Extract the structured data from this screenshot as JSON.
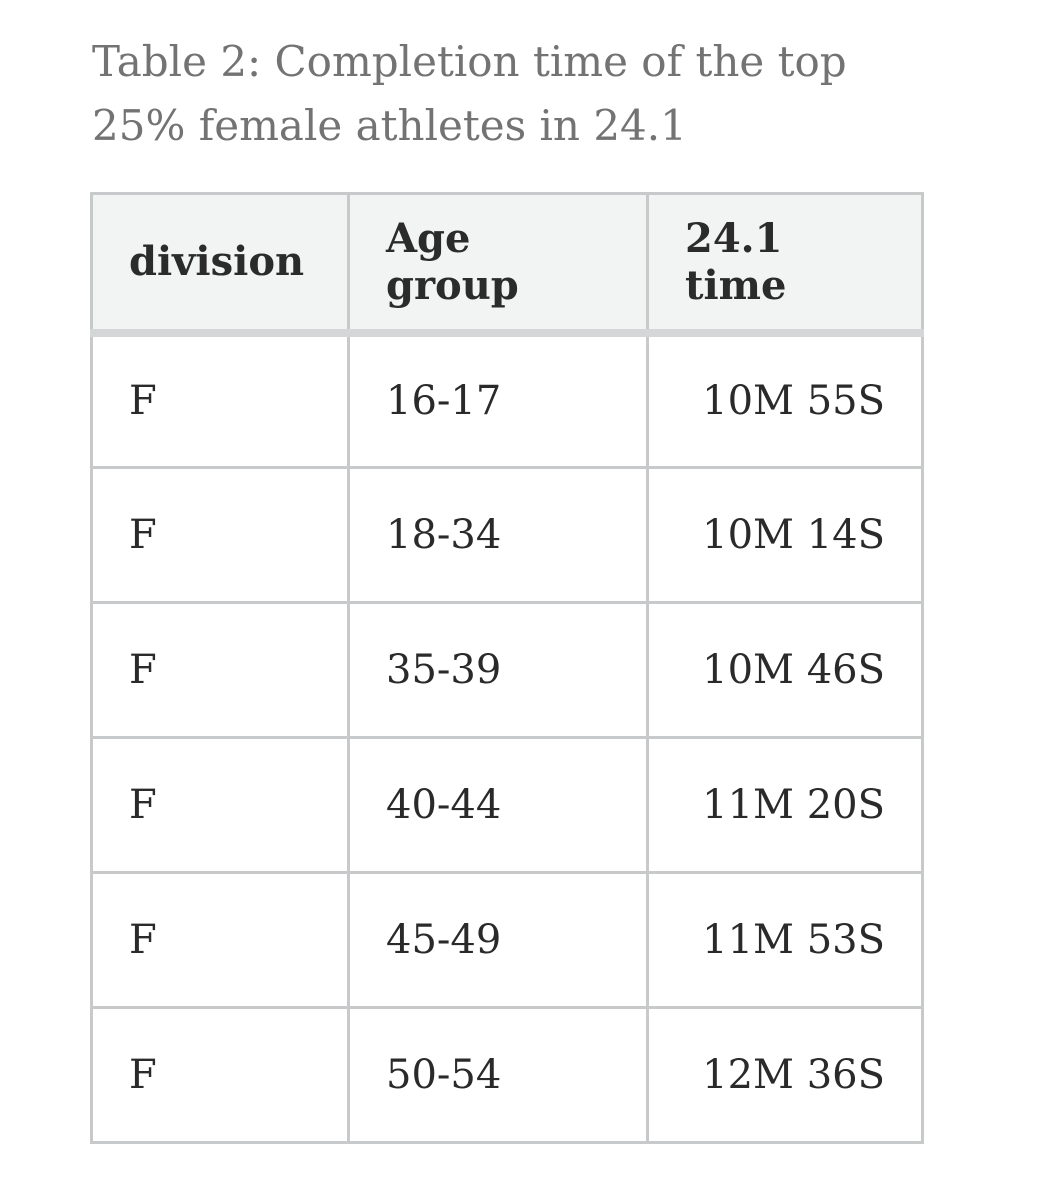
{
  "caption": "Table 2: Completion time of the top 25% female athletes in 24.1",
  "table": {
    "headers": [
      "division",
      "Age group",
      "24.1 time"
    ],
    "rows": [
      [
        "F",
        "16-17",
        "10M 55S"
      ],
      [
        "F",
        "18-34",
        "10M 14S"
      ],
      [
        "F",
        "35-39",
        "10M 46S"
      ],
      [
        "F",
        "40-44",
        "11M 20S"
      ],
      [
        "F",
        "45-49",
        "11M 53S"
      ],
      [
        "F",
        "50-54",
        "12M 36S"
      ]
    ]
  }
}
